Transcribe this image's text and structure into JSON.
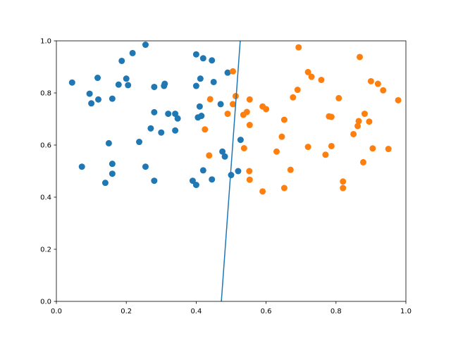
{
  "chart_data": {
    "type": "scatter",
    "xlim": [
      0,
      1
    ],
    "ylim": [
      0,
      1
    ],
    "xticks": [
      {
        "value": 0,
        "label": "0.0"
      },
      {
        "value": 0.2,
        "label": "0.2"
      },
      {
        "value": 0.4,
        "label": "0.4"
      },
      {
        "value": 0.6,
        "label": "0.6"
      },
      {
        "value": 0.8,
        "label": "0.8"
      },
      {
        "value": 1,
        "label": "1.0"
      }
    ],
    "yticks": [
      {
        "value": 0,
        "label": "0.0"
      },
      {
        "value": 0.2,
        "label": "0.2"
      },
      {
        "value": 0.4,
        "label": "0.4"
      },
      {
        "value": 0.6,
        "label": "0.6"
      },
      {
        "value": 0.8,
        "label": "0.8"
      },
      {
        "value": 1,
        "label": "1.0"
      }
    ],
    "series": [
      {
        "color": "#1f77b4",
        "x": [
          0.045,
          0.095,
          0.1,
          0.12,
          0.118,
          0.16,
          0.178,
          0.187,
          0.2,
          0.205,
          0.218,
          0.255,
          0.28,
          0.308,
          0.31,
          0.4,
          0.42,
          0.445,
          0.4,
          0.412,
          0.45,
          0.49,
          0.41,
          0.47,
          0.28,
          0.32,
          0.34,
          0.347,
          0.405,
          0.415,
          0.27,
          0.3,
          0.34,
          0.237,
          0.15,
          0.073,
          0.16,
          0.16,
          0.14,
          0.255,
          0.28,
          0.39,
          0.4,
          0.42,
          0.445,
          0.475,
          0.482,
          0.5,
          0.52,
          0.527
        ],
        "values": [
          0.84,
          0.797,
          0.76,
          0.775,
          0.858,
          0.778,
          0.832,
          0.923,
          0.855,
          0.83,
          0.953,
          0.985,
          0.823,
          0.827,
          0.835,
          0.948,
          0.933,
          0.925,
          0.827,
          0.855,
          0.842,
          0.878,
          0.748,
          0.757,
          0.726,
          0.72,
          0.72,
          0.702,
          0.706,
          0.712,
          0.664,
          0.648,
          0.656,
          0.612,
          0.607,
          0.517,
          0.528,
          0.49,
          0.455,
          0.517,
          0.463,
          0.463,
          0.447,
          0.503,
          0.468,
          0.575,
          0.556,
          0.485,
          0.5,
          0.62
        ]
      },
      {
        "color": "#ff7f0e",
        "x": [
          0.693,
          0.868,
          0.72,
          0.73,
          0.758,
          0.9,
          0.92,
          0.935,
          0.808,
          0.505,
          0.513,
          0.553,
          0.505,
          0.69,
          0.677,
          0.59,
          0.6,
          0.978,
          0.545,
          0.535,
          0.49,
          0.652,
          0.78,
          0.787,
          0.882,
          0.895,
          0.865,
          0.862,
          0.553,
          0.425,
          0.645,
          0.85,
          0.72,
          0.787,
          0.905,
          0.95,
          0.537,
          0.63,
          0.77,
          0.437,
          0.44,
          0.878,
          0.67,
          0.552,
          0.553,
          0.59,
          0.652,
          0.82,
          0.82
        ],
        "values": [
          0.975,
          0.938,
          0.88,
          0.862,
          0.85,
          0.845,
          0.835,
          0.81,
          0.78,
          0.883,
          0.788,
          0.775,
          0.757,
          0.812,
          0.783,
          0.748,
          0.738,
          0.772,
          0.727,
          0.716,
          0.72,
          0.697,
          0.71,
          0.708,
          0.72,
          0.69,
          0.692,
          0.673,
          0.677,
          0.66,
          0.632,
          0.642,
          0.593,
          0.596,
          0.587,
          0.585,
          0.588,
          0.575,
          0.563,
          0.56,
          0.776,
          0.534,
          0.505,
          0.5,
          0.467,
          0.422,
          0.435,
          0.46,
          0.435
        ]
      }
    ],
    "line": {
      "color": "#1f77b4",
      "x": [
        0.472,
        0.526
      ],
      "values": [
        0,
        1
      ]
    }
  }
}
